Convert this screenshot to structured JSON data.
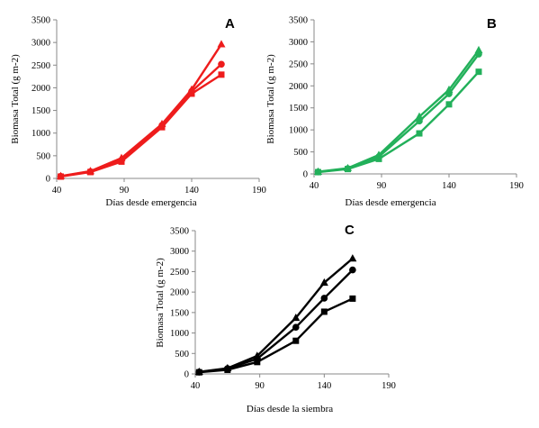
{
  "chart_data": [
    {
      "type": "line",
      "panel_label": "A",
      "xlabel": "Días desde emergencia",
      "ylabel": "Biomasa Total (g m-2)",
      "xlim": [
        40,
        190
      ],
      "ylim": [
        0,
        3500
      ],
      "xticks": [
        40,
        90,
        140,
        190
      ],
      "yticks": [
        0,
        500,
        1000,
        1500,
        2000,
        2500,
        3000,
        3500
      ],
      "color": "#ee1c1c",
      "x": [
        43,
        65,
        88,
        118,
        140,
        162
      ],
      "series": [
        {
          "marker": "triangle",
          "values": [
            50,
            160,
            450,
            1200,
            1960,
            2960
          ]
        },
        {
          "marker": "circle",
          "values": [
            45,
            150,
            400,
            1170,
            1920,
            2520
          ]
        },
        {
          "marker": "square",
          "values": [
            40,
            140,
            370,
            1130,
            1870,
            2290
          ]
        }
      ]
    },
    {
      "type": "line",
      "panel_label": "B",
      "xlabel": "Días desde  emergencia",
      "ylabel": "Biomasa Total (g m-2)",
      "xlim": [
        40,
        190
      ],
      "ylim": [
        0,
        3500
      ],
      "xticks": [
        40,
        90,
        140,
        190
      ],
      "yticks": [
        0,
        500,
        1000,
        1500,
        2000,
        2500,
        3000,
        3500
      ],
      "color": "#22b05a",
      "x": [
        43,
        65,
        88,
        118,
        140,
        162
      ],
      "series": [
        {
          "marker": "triangle",
          "values": [
            50,
            130,
            430,
            1300,
            1910,
            2810
          ]
        },
        {
          "marker": "circle",
          "values": [
            45,
            120,
            390,
            1200,
            1820,
            2720
          ]
        },
        {
          "marker": "square",
          "values": [
            40,
            110,
            340,
            920,
            1580,
            2320
          ]
        }
      ]
    },
    {
      "type": "line",
      "panel_label": "C",
      "xlabel": "Días desde la siembra",
      "ylabel": "Biomasa Total (g m-2)",
      "xlim": [
        40,
        190
      ],
      "ylim": [
        0,
        3500
      ],
      "xticks": [
        40,
        90,
        140,
        190
      ],
      "yticks": [
        0,
        500,
        1000,
        1500,
        2000,
        2500,
        3000,
        3500
      ],
      "color": "#000000",
      "x": [
        43,
        65,
        88,
        118,
        140,
        162
      ],
      "series": [
        {
          "marker": "triangle",
          "values": [
            50,
            140,
            440,
            1370,
            2230,
            2820
          ]
        },
        {
          "marker": "circle",
          "values": [
            45,
            130,
            370,
            1140,
            1850,
            2540
          ]
        },
        {
          "marker": "square",
          "values": [
            40,
            100,
            290,
            810,
            1520,
            1840
          ]
        }
      ]
    }
  ]
}
